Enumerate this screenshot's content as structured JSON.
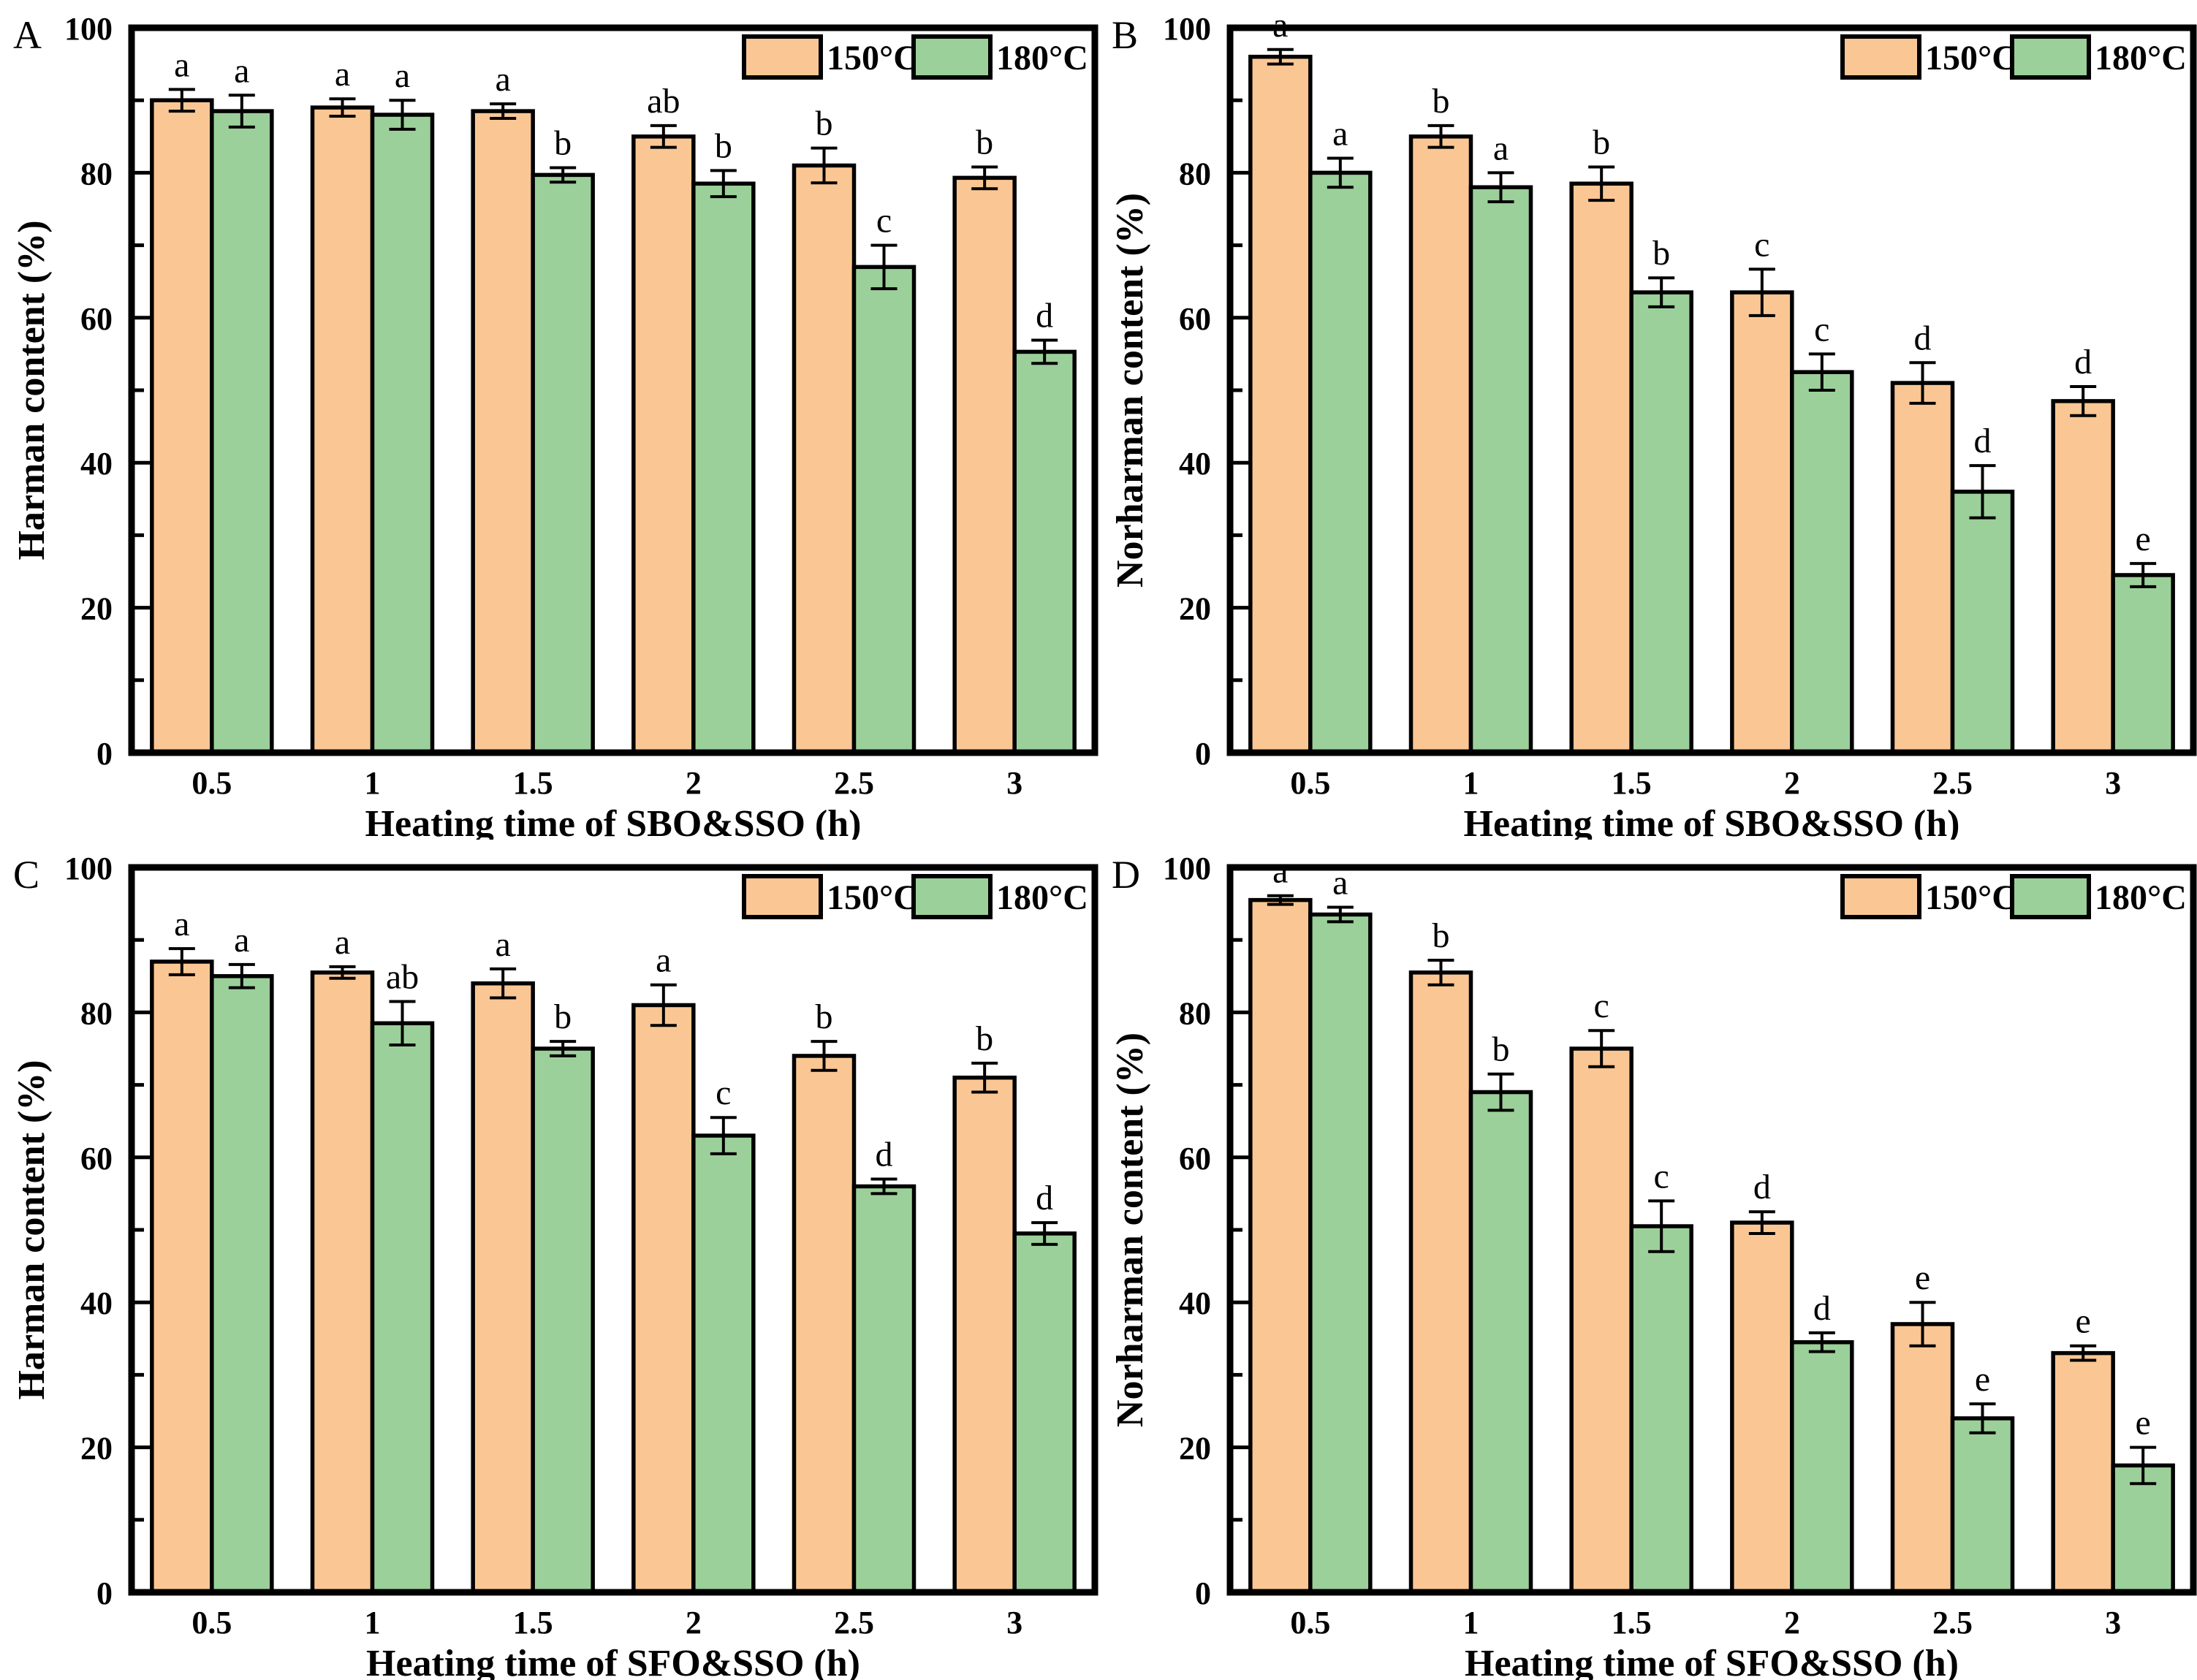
{
  "figure": {
    "background": "#ffffff",
    "axis_color": "#000000",
    "bar_colors": {
      "series_150": "#FAC794",
      "series_180": "#9CD09A"
    },
    "legend_labels": [
      "150°C",
      "180°C"
    ]
  },
  "chart_data": [
    {
      "type": "bar",
      "panel_label": "A",
      "title": "",
      "xlabel": "Heating time of SBO&SSO (h)",
      "ylabel": "Harman content (%)",
      "ylim": [
        0,
        100
      ],
      "ytick_major_step": 20,
      "ytick_minor_step": 10,
      "grid": false,
      "legend_position": "top-right-inside",
      "categories": [
        "0.5",
        "1",
        "1.5",
        "2",
        "2.5",
        "3"
      ],
      "series": [
        {
          "name": "150°C",
          "color": "#FAC794",
          "values": [
            90,
            89,
            88.5,
            85,
            81,
            79.3
          ],
          "errors": [
            1.5,
            1.2,
            1.0,
            1.5,
            2.4,
            1.5
          ],
          "letters": [
            "a",
            "a",
            "a",
            "ab",
            "b",
            "b"
          ]
        },
        {
          "name": "180°C",
          "color": "#9CD09A",
          "values": [
            88.5,
            88,
            79.7,
            78.5,
            67,
            55.3
          ],
          "errors": [
            2.2,
            2.0,
            1.0,
            1.8,
            3.0,
            1.6
          ],
          "letters": [
            "a",
            "a",
            "b",
            "b",
            "c",
            "d"
          ]
        }
      ]
    },
    {
      "type": "bar",
      "panel_label": "B",
      "title": "",
      "xlabel": "Heating time of SBO&SSO (h)",
      "ylabel": "Norharman content (%)",
      "ylim": [
        0,
        100
      ],
      "ytick_major_step": 20,
      "ytick_minor_step": 10,
      "grid": false,
      "legend_position": "top-right-inside",
      "categories": [
        "0.5",
        "1",
        "1.5",
        "2",
        "2.5",
        "3"
      ],
      "series": [
        {
          "name": "150°C",
          "color": "#FAC794",
          "values": [
            96,
            85,
            78.5,
            63.5,
            51,
            48.5
          ],
          "errors": [
            1.0,
            1.5,
            2.3,
            3.2,
            2.8,
            2.0
          ],
          "letters": [
            "a",
            "b",
            "b",
            "c",
            "d",
            "d"
          ]
        },
        {
          "name": "180°C",
          "color": "#9CD09A",
          "values": [
            80,
            78,
            63.5,
            52.5,
            36,
            24.5
          ],
          "errors": [
            2.0,
            2.0,
            2.0,
            2.5,
            3.6,
            1.6
          ],
          "letters": [
            "a",
            "a",
            "b",
            "c",
            "d",
            "e"
          ]
        }
      ]
    },
    {
      "type": "bar",
      "panel_label": "C",
      "title": "",
      "xlabel": "Heating time of SFO&SSO (h)",
      "ylabel": "Harman content (%)",
      "ylim": [
        0,
        100
      ],
      "ytick_major_step": 20,
      "ytick_minor_step": 10,
      "grid": false,
      "legend_position": "top-right-inside",
      "categories": [
        "0.5",
        "1",
        "1.5",
        "2",
        "2.5",
        "3"
      ],
      "series": [
        {
          "name": "150°C",
          "color": "#FAC794",
          "values": [
            87,
            85.5,
            84,
            81,
            74,
            71
          ],
          "errors": [
            1.8,
            0.8,
            2.0,
            2.8,
            2.0,
            2.0
          ],
          "letters": [
            "a",
            "a",
            "a",
            "a",
            "b",
            "b"
          ]
        },
        {
          "name": "180°C",
          "color": "#9CD09A",
          "values": [
            85,
            78.5,
            75,
            63,
            56,
            49.5
          ],
          "errors": [
            1.6,
            3.0,
            1.0,
            2.5,
            1.0,
            1.5
          ],
          "letters": [
            "a",
            "ab",
            "b",
            "c",
            "d",
            "d"
          ]
        }
      ]
    },
    {
      "type": "bar",
      "panel_label": "D",
      "title": "",
      "xlabel": "Heating time of SFO&SSO (h)",
      "ylabel": "Norharman content (%)",
      "ylim": [
        0,
        100
      ],
      "ytick_major_step": 20,
      "ytick_minor_step": 10,
      "grid": false,
      "legend_position": "top-right-inside",
      "categories": [
        "0.5",
        "1",
        "1.5",
        "2",
        "2.5",
        "3"
      ],
      "series": [
        {
          "name": "150°C",
          "color": "#FAC794",
          "values": [
            95.5,
            85.5,
            75,
            51,
            37,
            33
          ],
          "errors": [
            0.6,
            1.7,
            2.5,
            1.5,
            3.0,
            1.0
          ],
          "letters": [
            "a",
            "b",
            "c",
            "d",
            "e",
            "e"
          ]
        },
        {
          "name": "180°C",
          "color": "#9CD09A",
          "values": [
            93.5,
            69,
            50.5,
            34.5,
            24,
            17.5
          ],
          "errors": [
            1.0,
            2.5,
            3.5,
            1.3,
            2.0,
            2.5
          ],
          "letters": [
            "a",
            "b",
            "c",
            "d",
            "e",
            "e"
          ]
        }
      ]
    }
  ]
}
